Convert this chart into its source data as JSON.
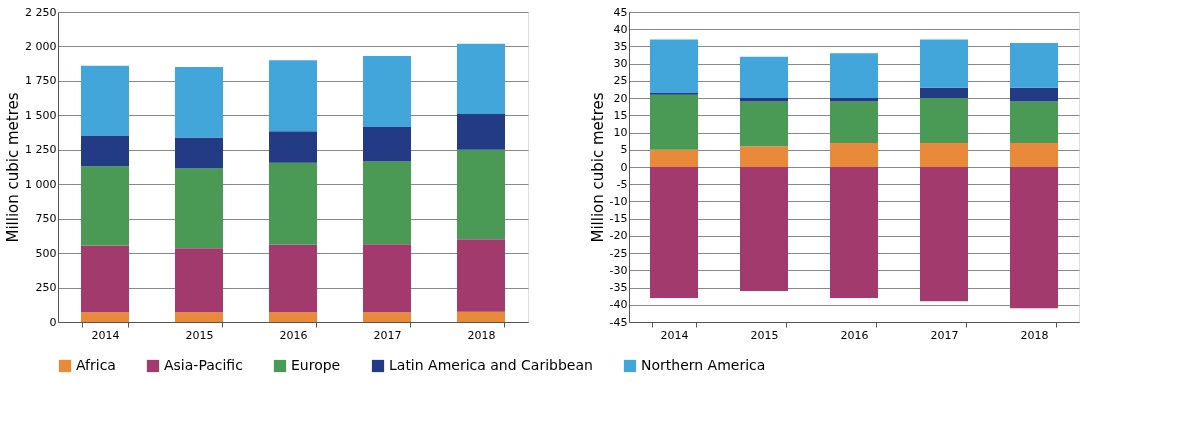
{
  "chart_data": [
    {
      "type": "bar",
      "stacked": true,
      "ylabel": "Million cubic metres",
      "categories": [
        "2014",
        "2015",
        "2016",
        "2017",
        "2018"
      ],
      "ylim": [
        0,
        2250
      ],
      "yticks": [
        0,
        250,
        500,
        750,
        {
          "value": 1000,
          "label": "1 000"
        },
        {
          "value": 1250,
          "label": "1 250"
        },
        {
          "value": 1500,
          "label": "1 500"
        },
        {
          "value": 1750,
          "label": "1 750"
        },
        {
          "value": 2000,
          "label": "2 000"
        },
        {
          "value": 2250,
          "label": "2 250"
        }
      ],
      "grid": "y",
      "legend": "bottom",
      "series": [
        {
          "name": "Africa",
          "color": "#e88a3a",
          "values": [
            70,
            70,
            70,
            70,
            75
          ]
        },
        {
          "name": "Asia-Pacific",
          "color": "#a33a6e",
          "values": [
            485,
            465,
            490,
            495,
            525
          ]
        },
        {
          "name": "Europe",
          "color": "#4a9a55",
          "values": [
            575,
            580,
            595,
            600,
            650
          ]
        },
        {
          "name": "Latin America and Caribbean",
          "color": "#233a85",
          "values": [
            220,
            225,
            230,
            250,
            260
          ]
        },
        {
          "name": "Northern America",
          "color": "#43a6da",
          "values": [
            510,
            510,
            515,
            515,
            510
          ]
        }
      ]
    },
    {
      "type": "bar",
      "stacked": true,
      "ylabel": "Million cubic metres",
      "categories": [
        "2014",
        "2015",
        "2016",
        "2017",
        "2018"
      ],
      "ylim": [
        -45,
        45
      ],
      "yticks": [
        -45,
        -40,
        -35,
        -30,
        -25,
        -20,
        -15,
        -10,
        -5,
        0,
        5,
        10,
        15,
        20,
        25,
        30,
        35,
        40,
        45
      ],
      "grid": "y",
      "legend": "bottom",
      "series": [
        {
          "name": "Africa",
          "color": "#e88a3a",
          "values": [
            5,
            6,
            7,
            7,
            7
          ]
        },
        {
          "name": "Asia-Pacific",
          "color": "#a33a6e",
          "values": [
            -38,
            -36,
            -38,
            -39,
            -41
          ]
        },
        {
          "name": "Europe",
          "color": "#4a9a55",
          "values": [
            16,
            13,
            12,
            13,
            12
          ]
        },
        {
          "name": "Latin America and Caribbean",
          "color": "#233a85",
          "values": [
            0.5,
            1,
            1,
            3,
            4
          ]
        },
        {
          "name": "Northern America",
          "color": "#43a6da",
          "values": [
            15.5,
            12,
            13,
            14,
            13
          ]
        }
      ]
    }
  ]
}
